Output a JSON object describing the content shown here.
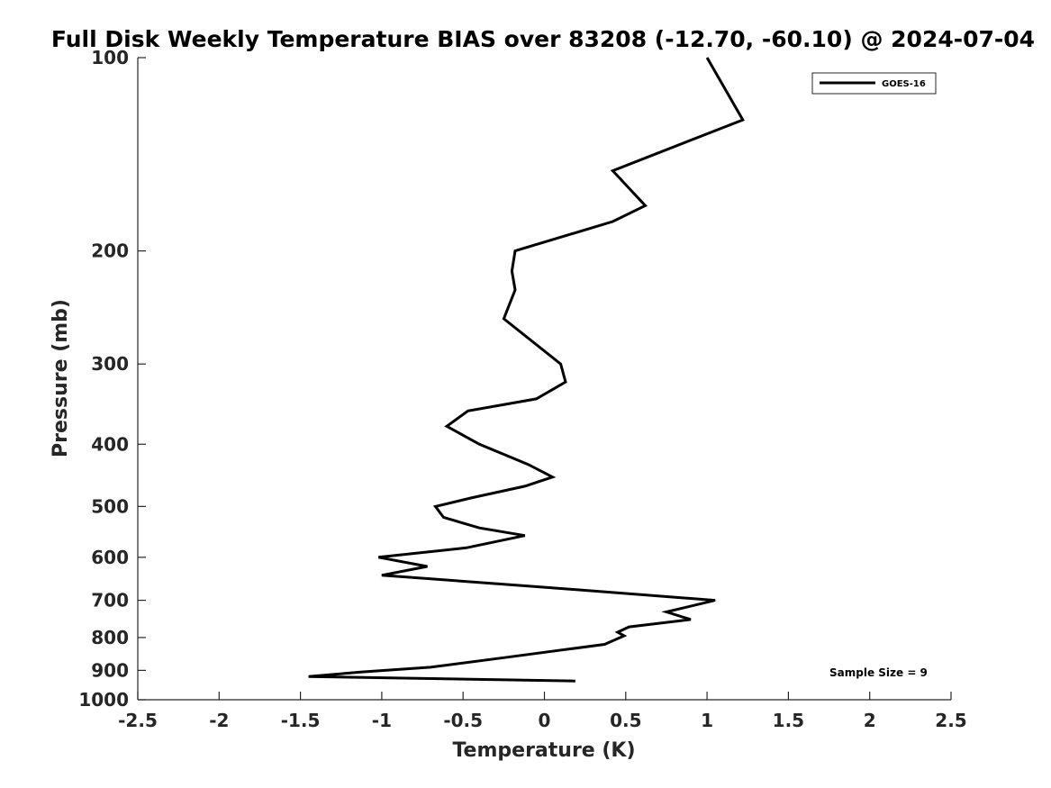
{
  "chart_data": {
    "type": "line",
    "title": "Full Disk Weekly Temperature BIAS over 83208 (-12.70, -60.10) @ 2024-07-04",
    "xlabel": "Temperature (K)",
    "ylabel": "Pressure (mb)",
    "xlim": [
      -2.5,
      2.5
    ],
    "ylim": [
      100,
      1000
    ],
    "y_scale": "log",
    "y_reversed": true,
    "xticks": [
      -2.5,
      -2,
      -1.5,
      -1,
      -0.5,
      0,
      0.5,
      1,
      1.5,
      2,
      2.5
    ],
    "xtick_labels": [
      "-2.5",
      "-2",
      "-1.5",
      "-1",
      "-0.5",
      "0",
      "0.5",
      "1",
      "1.5",
      "2",
      "2.5"
    ],
    "yticks": [
      100,
      200,
      300,
      400,
      500,
      600,
      700,
      800,
      900,
      1000
    ],
    "ytick_labels": [
      "100",
      "200",
      "300",
      "400",
      "500",
      "600",
      "700",
      "800",
      "900",
      "1000"
    ],
    "grid": false,
    "legend_position": "top-right",
    "series": [
      {
        "name": "GOES-16",
        "color": "#000000",
        "points": [
          [
            1.0,
            100
          ],
          [
            1.22,
            125
          ],
          [
            0.42,
            150
          ],
          [
            0.62,
            170
          ],
          [
            0.42,
            180
          ],
          [
            -0.18,
            200
          ],
          [
            -0.2,
            215
          ],
          [
            -0.18,
            230
          ],
          [
            -0.25,
            255
          ],
          [
            0.1,
            300
          ],
          [
            0.13,
            320
          ],
          [
            -0.05,
            340
          ],
          [
            -0.47,
            355
          ],
          [
            -0.6,
            375
          ],
          [
            -0.4,
            400
          ],
          [
            -0.1,
            430
          ],
          [
            0.05,
            450
          ],
          [
            -0.12,
            465
          ],
          [
            -0.45,
            485
          ],
          [
            -0.67,
            500
          ],
          [
            -0.62,
            520
          ],
          [
            -0.4,
            540
          ],
          [
            -0.12,
            555
          ],
          [
            -0.48,
            580
          ],
          [
            -1.02,
            600
          ],
          [
            -0.72,
            620
          ],
          [
            -1.0,
            640
          ],
          [
            -0.1,
            665
          ],
          [
            1.05,
            700
          ],
          [
            0.75,
            730
          ],
          [
            0.9,
            750
          ],
          [
            0.52,
            770
          ],
          [
            0.45,
            785
          ],
          [
            0.49,
            795
          ],
          [
            0.37,
            820
          ],
          [
            -0.25,
            860
          ],
          [
            -0.7,
            890
          ],
          [
            -1.12,
            905
          ],
          [
            -1.45,
            920
          ],
          [
            0.19,
            935
          ]
        ]
      }
    ],
    "annotations": [
      {
        "text": "Sample Size = 9"
      }
    ]
  }
}
